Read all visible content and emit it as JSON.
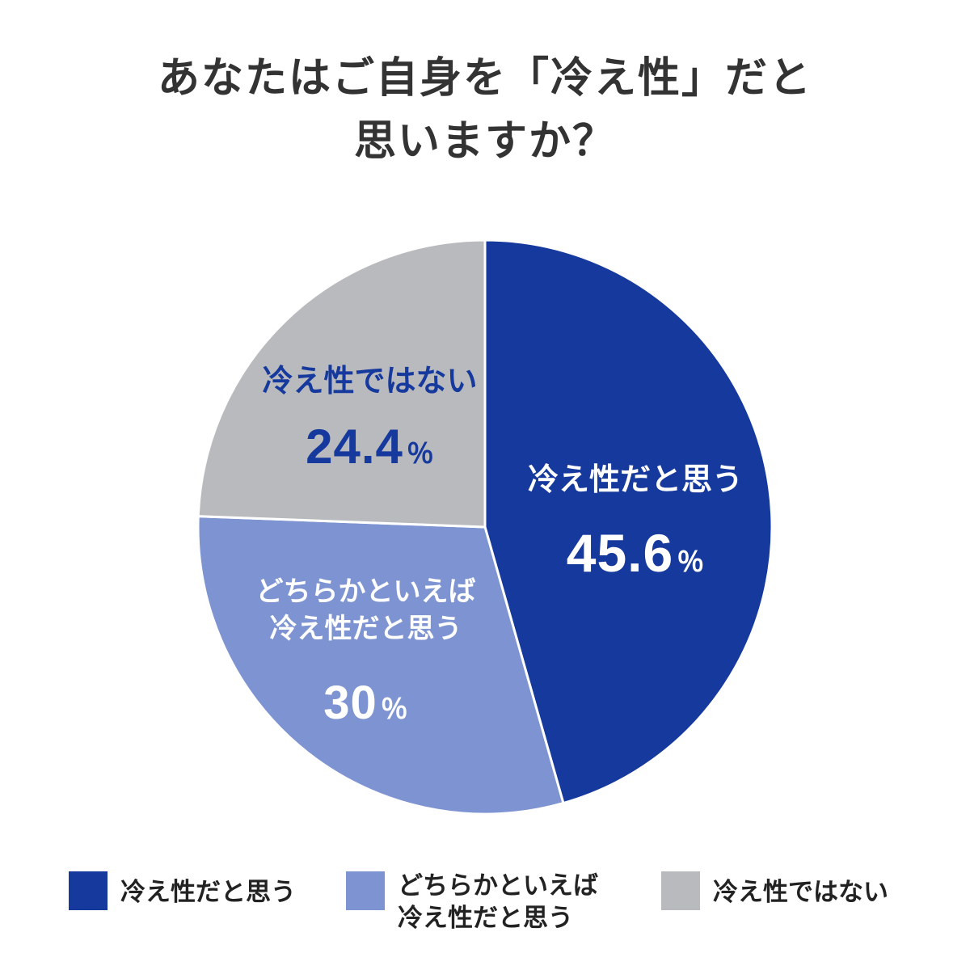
{
  "title": "あなたはご自身を「冷え性」だと\n思いますか？",
  "chart_data": {
    "type": "pie",
    "title": "あなたはご自身を「冷え性」だと思いますか？",
    "start_angle_deg": 0,
    "direction": "clockwise",
    "total": 100,
    "slices": [
      {
        "label": "冷え性だと思う",
        "value": 45.6,
        "display_value": "45.6",
        "unit": "％",
        "color": "#16399d",
        "text_color": "#ffffff"
      },
      {
        "label": "どちらかといえば\n冷え性だと思う",
        "value": 30,
        "display_value": "30",
        "unit": "％",
        "color": "#7e94d2",
        "text_color": "#ffffff"
      },
      {
        "label": "冷え性ではない",
        "value": 24.4,
        "display_value": "24.4",
        "unit": "％",
        "color": "#b9babe",
        "text_color": "#16399d"
      }
    ],
    "legend": {
      "position": "bottom",
      "items": [
        {
          "label": "冷え性だと思う",
          "color": "#16399d"
        },
        {
          "label": "どちらかといえば\n冷え性だと思う",
          "color": "#7e94d2"
        },
        {
          "label": "冷え性ではない",
          "color": "#b9babe"
        }
      ]
    },
    "grid": false
  }
}
